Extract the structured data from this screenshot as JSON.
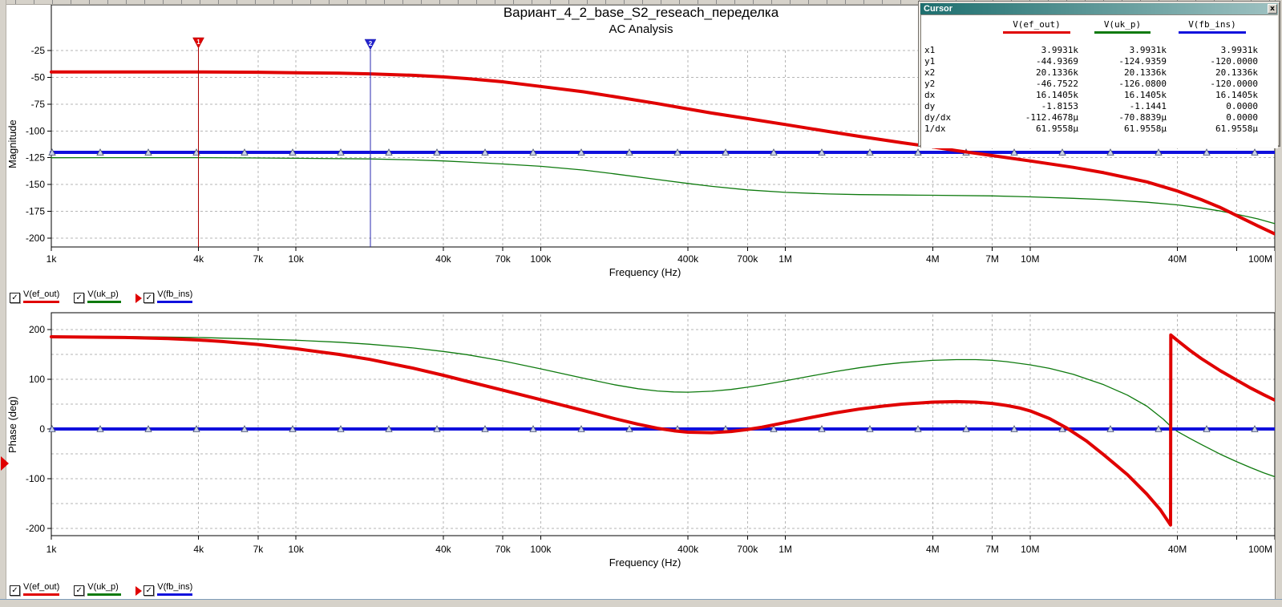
{
  "titles": {
    "line1": "Вариант_4_2_base_S2_reseach_переделка",
    "line2": "AC Analysis"
  },
  "axes": {
    "x_label": "Frequency (Hz)",
    "mag_label": "Magnitude",
    "phase_label": "Phase (deg)",
    "x_scale": "log",
    "x_min": 1000,
    "x_max": 100000000,
    "x_ticks": [
      {
        "f": 1000,
        "label": "1k"
      },
      {
        "f": 4000,
        "label": "4k"
      },
      {
        "f": 7000,
        "label": "7k"
      },
      {
        "f": 10000,
        "label": "10k"
      },
      {
        "f": 40000,
        "label": "40k"
      },
      {
        "f": 70000,
        "label": "70k"
      },
      {
        "f": 100000,
        "label": "100k"
      },
      {
        "f": 400000,
        "label": "400k"
      },
      {
        "f": 700000,
        "label": "700k"
      },
      {
        "f": 1000000,
        "label": "1M"
      },
      {
        "f": 4000000,
        "label": "4M"
      },
      {
        "f": 7000000,
        "label": "7M"
      },
      {
        "f": 10000000,
        "label": "10M"
      },
      {
        "f": 40000000,
        "label": "40M"
      },
      {
        "f": 70000000,
        "label": ""
      },
      {
        "f": 100000000,
        "label": "100M"
      }
    ],
    "mag_y_labels": [
      -25,
      -50,
      -75,
      -100,
      -125,
      -150,
      -175,
      -200
    ],
    "phase_y_labels": [
      200,
      100,
      0,
      -100,
      -200
    ],
    "mag_grid_step": 25,
    "phase_grid_step": 50
  },
  "colors": {
    "red": "#e00000",
    "green": "#0e7a0e",
    "blue": "#1010dd",
    "cursor_red_line": "#aa0000",
    "cursor_blue_line": "#2a2ab0",
    "grid": "#b6b6b6",
    "chrome": "#d6d2ca",
    "titlebar_teal": "#1e6f6f"
  },
  "legend": {
    "items": [
      {
        "label": "V(ef_out)",
        "color": "#e00000",
        "checked": true,
        "arrow": false
      },
      {
        "label": "V(uk_p)",
        "color": "#0e7a0e",
        "checked": true,
        "arrow": false
      },
      {
        "label": "V(fb_ins)",
        "color": "#1010dd",
        "checked": true,
        "arrow": true
      }
    ]
  },
  "cursors": [
    {
      "id": "1",
      "freq": 3993.1,
      "freq_label": "3.9931k",
      "line_color": "#aa0000",
      "fill_color": "#e00000"
    },
    {
      "id": "2",
      "freq": 20133.6,
      "freq_label": "20.1336k",
      "line_color": "#2a2ab0",
      "fill_color": "#2222cc"
    }
  ],
  "cursor_panel": {
    "title": "Cursor",
    "close_label": "x",
    "columns": [
      "V(ef_out)",
      "V(uk_p)",
      "V(fb_ins)"
    ],
    "col_colors": [
      "#e00000",
      "#0e7a0e",
      "#1010dd"
    ],
    "rows": [
      {
        "name": "x1",
        "values": [
          "3.9931k",
          "3.9931k",
          "3.9931k"
        ]
      },
      {
        "name": "y1",
        "values": [
          "-44.9369",
          "-124.9359",
          "-120.0000"
        ]
      },
      {
        "name": "x2",
        "values": [
          "20.1336k",
          "20.1336k",
          "20.1336k"
        ]
      },
      {
        "name": "y2",
        "values": [
          "-46.7522",
          "-126.0800",
          "-120.0000"
        ]
      },
      {
        "name": "dx",
        "values": [
          "16.1405k",
          "16.1405k",
          "16.1405k"
        ]
      },
      {
        "name": "dy",
        "values": [
          "-1.8153",
          "-1.1441",
          "0.0000"
        ]
      },
      {
        "name": "dy/dx",
        "values": [
          "-112.4678µ",
          "-70.8839µ",
          "0.0000"
        ]
      },
      {
        "name": "1/dx",
        "values": [
          "61.9558µ",
          "61.9558µ",
          "61.9558µ"
        ]
      }
    ]
  },
  "chart_data": [
    {
      "type": "line",
      "title": "Magnitude",
      "xlabel": "Frequency (Hz)",
      "ylabel": "Magnitude",
      "x_scale": "log",
      "x_range": [
        1000,
        100000000
      ],
      "ylim": [
        -200,
        -25
      ],
      "grid": true,
      "series": [
        {
          "name": "V(uk_p)",
          "color": "#0e7a0e",
          "width": 1.3,
          "markers": false,
          "points": [
            [
              1000,
              -125
            ],
            [
              2000,
              -124.95
            ],
            [
              4000,
              -124.94
            ],
            [
              7000,
              -125.2
            ],
            [
              10000,
              -125.5
            ],
            [
              20000,
              -126.08
            ],
            [
              30000,
              -127
            ],
            [
              40000,
              -128
            ],
            [
              50000,
              -129
            ],
            [
              70000,
              -130.8
            ],
            [
              100000,
              -133
            ],
            [
              150000,
              -136.5
            ],
            [
              200000,
              -140
            ],
            [
              300000,
              -145.3
            ],
            [
              400000,
              -149
            ],
            [
              500000,
              -151.7
            ],
            [
              700000,
              -155
            ],
            [
              1000000,
              -157.3
            ],
            [
              1500000,
              -158.8
            ],
            [
              2000000,
              -159.4
            ],
            [
              3000000,
              -159.8
            ],
            [
              4000000,
              -160
            ],
            [
              7000000,
              -160.6
            ],
            [
              10000000,
              -161.5
            ],
            [
              15000000,
              -162.8
            ],
            [
              20000000,
              -164
            ],
            [
              30000000,
              -166.5
            ],
            [
              40000000,
              -169
            ],
            [
              50000000,
              -171.8
            ],
            [
              60000000,
              -174.7
            ],
            [
              70000000,
              -177.8
            ],
            [
              85000000,
              -182
            ],
            [
              100000000,
              -186.5
            ]
          ]
        },
        {
          "name": "V(fb_ins)",
          "color": "#1010dd",
          "width": 4,
          "markers": true,
          "points": [
            [
              1000,
              -120
            ],
            [
              100000000,
              -120
            ]
          ]
        },
        {
          "name": "V(ef_out)",
          "color": "#e00000",
          "width": 4,
          "markers": false,
          "points": [
            [
              1000,
              -45
            ],
            [
              2000,
              -44.95
            ],
            [
              4000,
              -44.94
            ],
            [
              7000,
              -45.25
            ],
            [
              10000,
              -45.7
            ],
            [
              15000,
              -46.2
            ],
            [
              20000,
              -46.75
            ],
            [
              30000,
              -48.1
            ],
            [
              40000,
              -49.6
            ],
            [
              50000,
              -51.2
            ],
            [
              70000,
              -54.2
            ],
            [
              100000,
              -58.5
            ],
            [
              150000,
              -63.5
            ],
            [
              200000,
              -68
            ],
            [
              300000,
              -74.5
            ],
            [
              400000,
              -79.5
            ],
            [
              500000,
              -83.3
            ],
            [
              700000,
              -88.5
            ],
            [
              1000000,
              -94
            ],
            [
              1500000,
              -100.5
            ],
            [
              2000000,
              -105
            ],
            [
              3000000,
              -111
            ],
            [
              4000000,
              -115
            ],
            [
              5000000,
              -118.3
            ],
            [
              7000000,
              -123
            ],
            [
              10000000,
              -128
            ],
            [
              15000000,
              -134
            ],
            [
              20000000,
              -139
            ],
            [
              30000000,
              -147.5
            ],
            [
              40000000,
              -156
            ],
            [
              50000000,
              -164
            ],
            [
              60000000,
              -171.5
            ],
            [
              70000000,
              -179
            ],
            [
              85000000,
              -188.5
            ],
            [
              100000000,
              -196
            ]
          ]
        }
      ]
    },
    {
      "type": "line",
      "title": "Phase",
      "xlabel": "Frequency (Hz)",
      "ylabel": "Phase (deg)",
      "x_scale": "log",
      "x_range": [
        1000,
        100000000
      ],
      "ylim": [
        -200,
        200
      ],
      "grid": true,
      "series": [
        {
          "name": "V(uk_p)",
          "color": "#0e7a0e",
          "width": 1.3,
          "markers": false,
          "points": [
            [
              1000,
              187
            ],
            [
              2000,
              186
            ],
            [
              4000,
              184
            ],
            [
              7000,
              181
            ],
            [
              10000,
              178.5
            ],
            [
              15000,
              174.5
            ],
            [
              20000,
              170.5
            ],
            [
              30000,
              163
            ],
            [
              40000,
              156
            ],
            [
              50000,
              149.5
            ],
            [
              70000,
              137
            ],
            [
              100000,
              121
            ],
            [
              150000,
              102
            ],
            [
              200000,
              89
            ],
            [
              250000,
              81
            ],
            [
              300000,
              76.5
            ],
            [
              350000,
              74.5
            ],
            [
              400000,
              74
            ],
            [
              500000,
              76
            ],
            [
              600000,
              79.5
            ],
            [
              700000,
              84
            ],
            [
              800000,
              88.5
            ],
            [
              1000000,
              97
            ],
            [
              1300000,
              107.5
            ],
            [
              1600000,
              115.5
            ],
            [
              2000000,
              123
            ],
            [
              2500000,
              129.5
            ],
            [
              3000000,
              133.5
            ],
            [
              4000000,
              138
            ],
            [
              5000000,
              139.5
            ],
            [
              6000000,
              139.5
            ],
            [
              7000000,
              138
            ],
            [
              8000000,
              135.5
            ],
            [
              10000000,
              129
            ],
            [
              12000000,
              122
            ],
            [
              15000000,
              110
            ],
            [
              20000000,
              89
            ],
            [
              25000000,
              68
            ],
            [
              30000000,
              46
            ],
            [
              35000000,
              20
            ],
            [
              38000000,
              3
            ],
            [
              40000000,
              -5
            ],
            [
              45000000,
              -19
            ],
            [
              50000000,
              -31
            ],
            [
              60000000,
              -51
            ],
            [
              70000000,
              -66
            ],
            [
              80000000,
              -78
            ],
            [
              90000000,
              -88
            ],
            [
              100000000,
              -96
            ]
          ]
        },
        {
          "name": "V(fb_ins)",
          "color": "#1010dd",
          "width": 4,
          "markers": true,
          "points": [
            [
              1000,
              0
            ],
            [
              100000000,
              0
            ]
          ]
        },
        {
          "name": "V(ef_out)",
          "color": "#e00000",
          "width": 4,
          "markers": false,
          "points": [
            [
              1000,
              185.5
            ],
            [
              2000,
              184
            ],
            [
              3000,
              182
            ],
            [
              4000,
              179
            ],
            [
              5000,
              176
            ],
            [
              7000,
              170
            ],
            [
              10000,
              161.5
            ],
            [
              15000,
              150
            ],
            [
              20000,
              140
            ],
            [
              30000,
              122.5
            ],
            [
              40000,
              108
            ],
            [
              50000,
              96
            ],
            [
              70000,
              78
            ],
            [
              100000,
              59
            ],
            [
              150000,
              37
            ],
            [
              200000,
              21
            ],
            [
              250000,
              9.5
            ],
            [
              300000,
              1.5
            ],
            [
              350000,
              -3.5
            ],
            [
              400000,
              -6.5
            ],
            [
              500000,
              -7.5
            ],
            [
              600000,
              -5
            ],
            [
              700000,
              -1
            ],
            [
              800000,
              3.5
            ],
            [
              1000000,
              13
            ],
            [
              1300000,
              24
            ],
            [
              1600000,
              32.5
            ],
            [
              2000000,
              40
            ],
            [
              2500000,
              46
            ],
            [
              3000000,
              50
            ],
            [
              4000000,
              54
            ],
            [
              5000000,
              55
            ],
            [
              6000000,
              54
            ],
            [
              7000000,
              51.5
            ],
            [
              8000000,
              47.5
            ],
            [
              9000000,
              42.5
            ],
            [
              10000000,
              36.5
            ],
            [
              12000000,
              21
            ],
            [
              14000000,
              3
            ],
            [
              17000000,
              -24
            ],
            [
              20000000,
              -52
            ],
            [
              25000000,
              -92
            ],
            [
              30000000,
              -131
            ],
            [
              34000000,
              -162
            ],
            [
              37500000,
              -193
            ],
            [
              37600000,
              189
            ],
            [
              40000000,
              178
            ],
            [
              45000000,
              158
            ],
            [
              50000000,
              142
            ],
            [
              60000000,
              117
            ],
            [
              70000000,
              98
            ],
            [
              80000000,
              82
            ],
            [
              90000000,
              69
            ],
            [
              100000000,
              58
            ]
          ]
        }
      ]
    }
  ]
}
